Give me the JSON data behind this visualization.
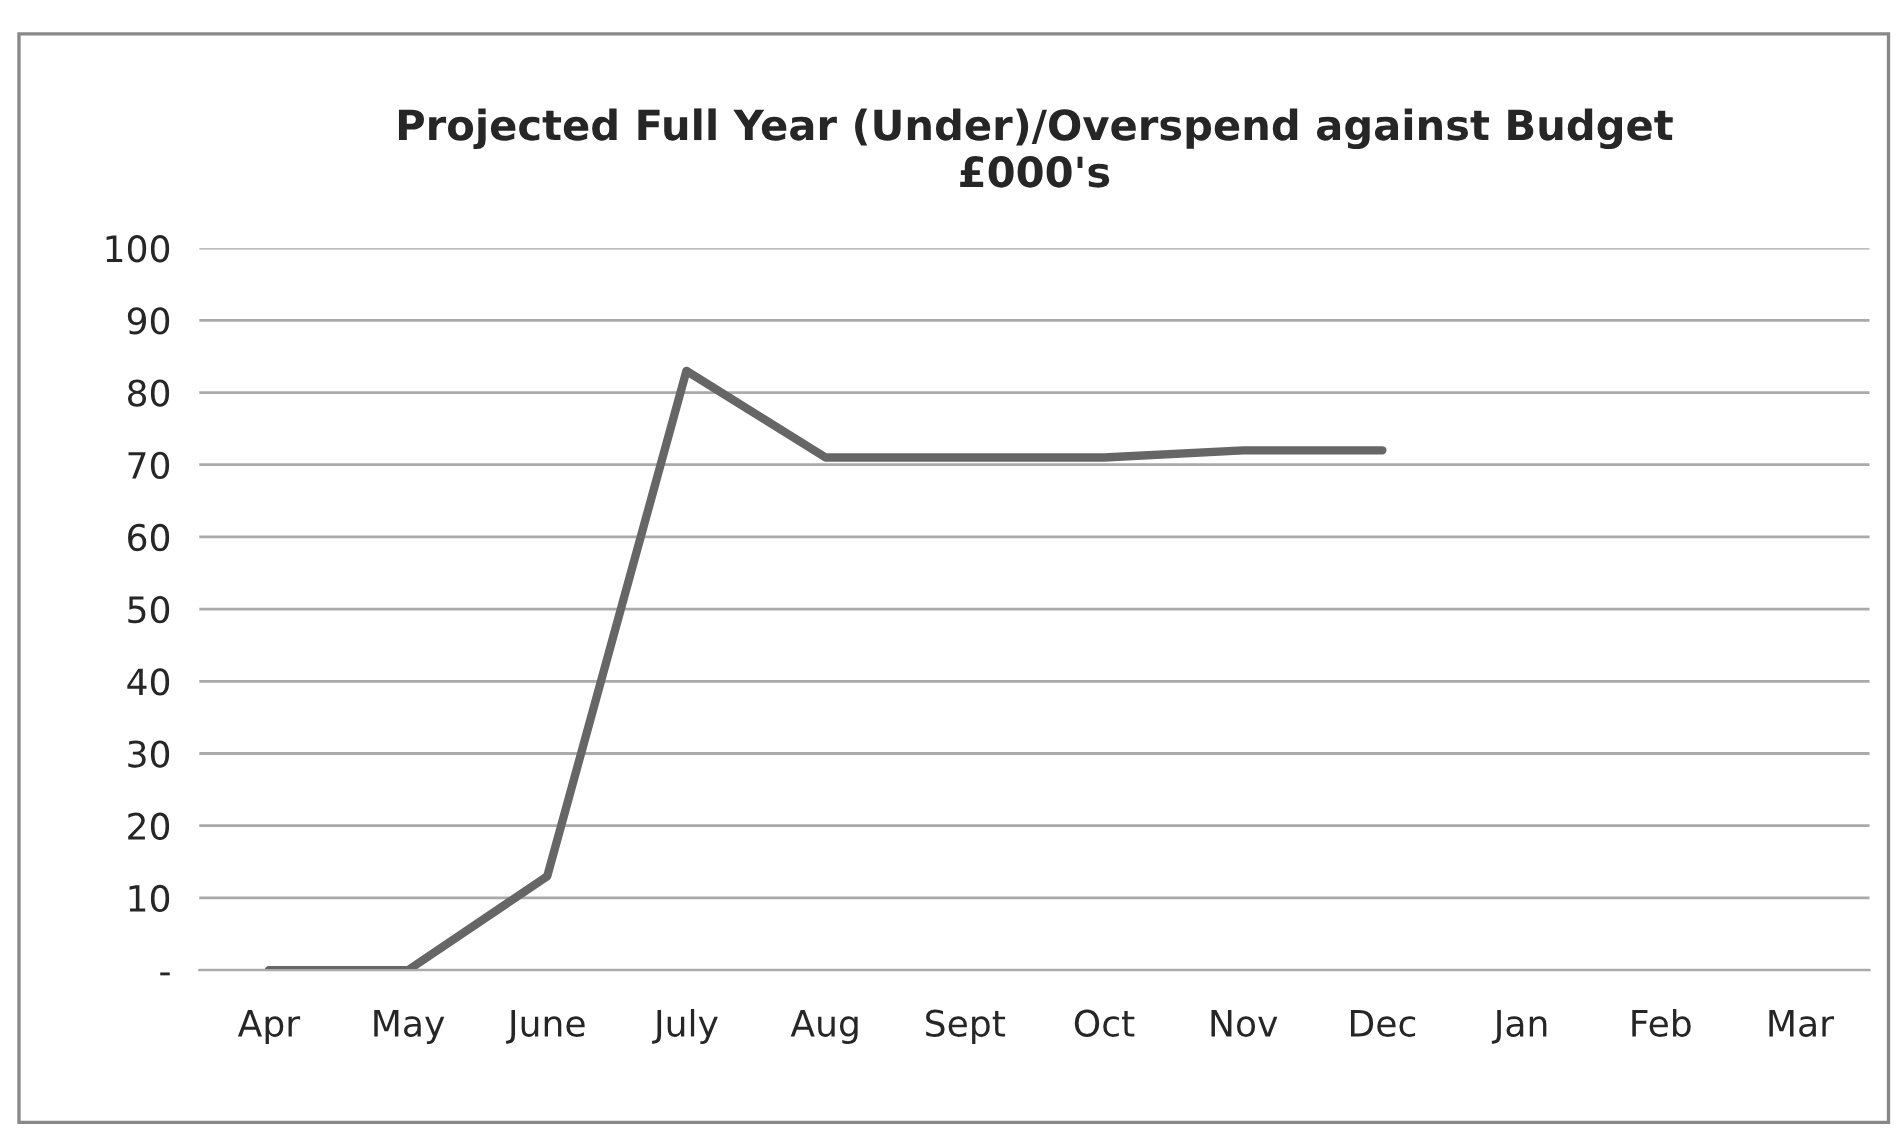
{
  "chart_data": {
    "type": "line",
    "title": "Projected Full Year (Under)/Overspend against Budget\n£000's",
    "categories": [
      "Apr",
      "May",
      "June",
      "July",
      "Aug",
      "Sept",
      "Oct",
      "Nov",
      "Dec",
      "Jan",
      "Feb",
      "Mar"
    ],
    "series": [
      {
        "color": "#666666",
        "values": [
          0,
          0,
          13,
          83,
          71,
          71,
          71,
          72,
          72,
          null,
          null,
          null
        ]
      }
    ],
    "ylim": [
      0,
      100
    ],
    "yticks": [
      {
        "value": 0,
        "label": "-"
      },
      10,
      20,
      30,
      40,
      50,
      60,
      70,
      80,
      90,
      100
    ],
    "grid": "y"
  }
}
